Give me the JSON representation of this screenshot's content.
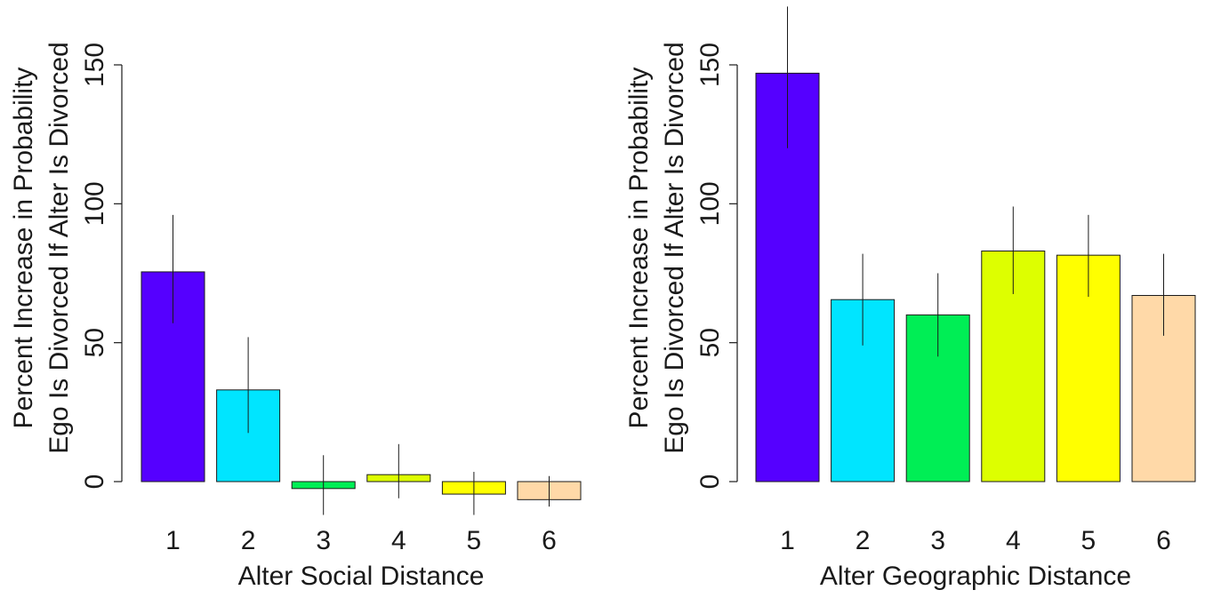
{
  "chart_data": [
    {
      "type": "bar",
      "title": "",
      "xlabel": "Alter Social Distance",
      "ylabel_lines": [
        "Percent Increase in Probability",
        "Ego Is Divorced If Alter Is Divorced"
      ],
      "ylim": [
        0,
        150
      ],
      "yticks": [
        0,
        50,
        100,
        150
      ],
      "categories": [
        "1",
        "2",
        "3",
        "4",
        "5",
        "6"
      ],
      "values": [
        75.5,
        33,
        -2.5,
        2.5,
        -4.5,
        -6.5
      ],
      "error_low": [
        57,
        17.5,
        -12,
        -6,
        -12,
        -9
      ],
      "error_high": [
        96,
        52,
        9.5,
        13.5,
        3.5,
        2
      ],
      "colors": [
        "#5500ff",
        "#00e5ff",
        "#00ee55",
        "#ddff00",
        "#ffff00",
        "#ffd9a8"
      ],
      "grid": false,
      "legend": "none"
    },
    {
      "type": "bar",
      "title": "",
      "xlabel": "Alter Geographic Distance",
      "ylabel_lines": [
        "Percent Increase in Probability",
        "Ego Is Divorced If Alter Is Divorced"
      ],
      "ylim": [
        0,
        150
      ],
      "yticks": [
        0,
        50,
        100,
        150
      ],
      "categories": [
        "1",
        "2",
        "3",
        "4",
        "5",
        "6"
      ],
      "values": [
        147,
        65.5,
        60,
        83,
        81.5,
        67
      ],
      "error_low": [
        120,
        49,
        45,
        67.5,
        66.5,
        52.5
      ],
      "error_high": [
        171,
        82,
        75,
        99,
        96,
        82
      ],
      "colors": [
        "#5500ff",
        "#00e5ff",
        "#00ee55",
        "#ddff00",
        "#ffff00",
        "#ffd9a8"
      ],
      "grid": false,
      "legend": "none"
    }
  ]
}
